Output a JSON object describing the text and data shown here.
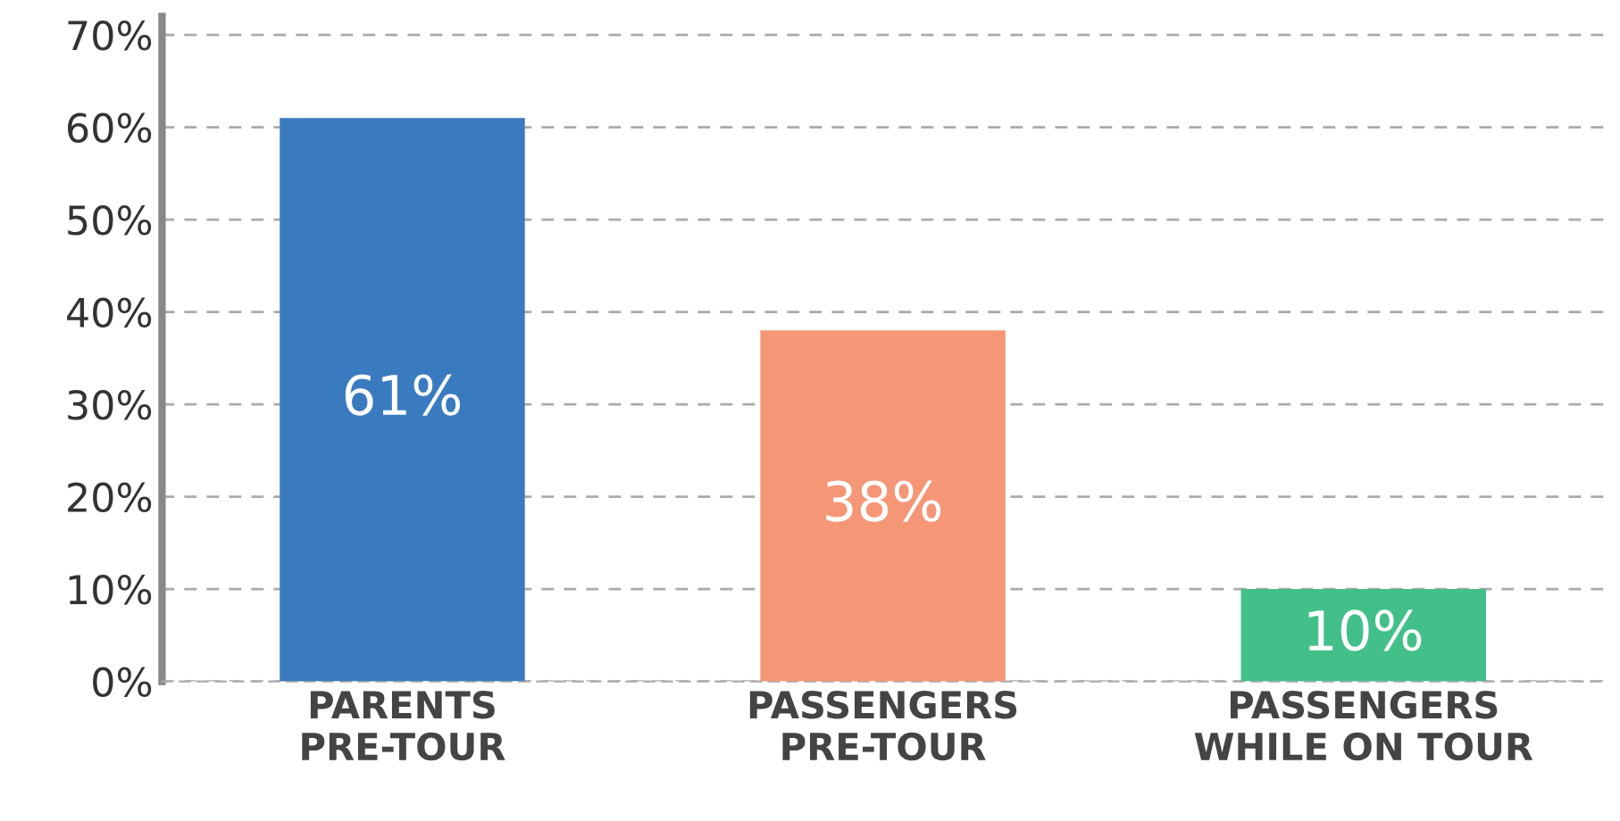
{
  "chart_data": {
    "type": "bar",
    "categories": [
      "PARENTS\nPRE-TOUR",
      "PASSENGERS\nPRE-TOUR",
      "PASSENGERS\nWHILE ON TOUR"
    ],
    "values": [
      61,
      38,
      10
    ],
    "colors": [
      "#3a7bc0",
      "#f59677",
      "#43bf8a"
    ],
    "value_labels": [
      "61%",
      "38%",
      "10%"
    ],
    "ylim": [
      0,
      72
    ],
    "yticks": [
      {
        "value": 0,
        "label": "0%"
      },
      {
        "value": 10,
        "label": "10%"
      },
      {
        "value": 20,
        "label": "20%"
      },
      {
        "value": 30,
        "label": "30%"
      },
      {
        "value": 40,
        "label": "40%"
      },
      {
        "value": 50,
        "label": "50%"
      },
      {
        "value": 60,
        "label": "60%"
      },
      {
        "value": 70,
        "label": "70%"
      }
    ],
    "grid": "y"
  }
}
